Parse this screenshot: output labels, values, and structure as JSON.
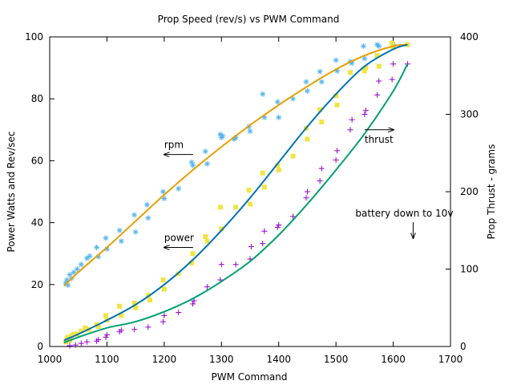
{
  "chart_data": {
    "type": "scatter",
    "title": "Prop Speed (rev/s) vs PWM Command",
    "xlabel": "PWM Command",
    "ylabel": "Power Watts and Rev/sec",
    "y2label": "Prop Thrust - grams",
    "xlim": [
      1000,
      1700
    ],
    "ylim": [
      0,
      100
    ],
    "y2lim": [
      0,
      400
    ],
    "x_ticks": [
      1000,
      1100,
      1200,
      1300,
      1400,
      1500,
      1600,
      1700
    ],
    "y_ticks": [
      0,
      20,
      40,
      60,
      80,
      100
    ],
    "y2_ticks": [
      0,
      100,
      200,
      300,
      400
    ],
    "grid": false,
    "series": [
      {
        "key": "rpm",
        "axis": "y",
        "marker": "star",
        "color": "#56b4e9",
        "x": [
          1028,
          1030,
          1032,
          1035,
          1038,
          1042,
          1048,
          1055,
          1065,
          1070,
          1082,
          1085,
          1098,
          1100,
          1122,
          1125,
          1148,
          1150,
          1170,
          1172,
          1198,
          1200,
          1225,
          1248,
          1250,
          1272,
          1275,
          1298,
          1300,
          1302,
          1322,
          1325,
          1348,
          1350,
          1372,
          1375,
          1398,
          1400,
          1425,
          1448,
          1450,
          1472,
          1475,
          1500,
          1502,
          1525,
          1528,
          1548,
          1550,
          1572,
          1575,
          1598,
          1600
        ],
        "y": [
          20.5,
          21.5,
          19.8,
          23.2,
          22.0,
          24.0,
          25.0,
          26.5,
          28.5,
          29.2,
          32.0,
          29.0,
          35.0,
          31.5,
          37.5,
          34.0,
          42.5,
          37.0,
          45.8,
          41.5,
          50.0,
          47.8,
          51.0,
          59.5,
          58.5,
          63.0,
          59.0,
          68.5,
          67.5,
          68.0,
          67.0,
          67.5,
          71.0,
          69.5,
          81.5,
          74.0,
          79.0,
          74.0,
          80.0,
          85.5,
          82.5,
          88.8,
          85.5,
          92.5,
          89.0,
          92.0,
          91.5,
          97.0,
          93.0,
          97.5,
          97.0,
          98.0,
          97.5
        ],
        "fit_x": [
          1025,
          1050,
          1100,
          1150,
          1200,
          1250,
          1300,
          1350,
          1400,
          1450,
          1500,
          1550,
          1600,
          1625
        ],
        "fit_y": [
          19.5,
          24.0,
          32.0,
          40.5,
          49.0,
          57.0,
          64.5,
          71.5,
          78.0,
          84.0,
          89.5,
          94.0,
          97.0,
          97.5
        ]
      },
      {
        "key": "power",
        "axis": "y",
        "marker": "square",
        "color": "#f0e442",
        "x": [
          1028,
          1030,
          1032,
          1035,
          1038,
          1042,
          1048,
          1055,
          1062,
          1068,
          1082,
          1085,
          1098,
          1100,
          1122,
          1125,
          1148,
          1150,
          1172,
          1175,
          1198,
          1200,
          1225,
          1248,
          1250,
          1272,
          1275,
          1298,
          1300,
          1325,
          1348,
          1350,
          1372,
          1375,
          1398,
          1400,
          1425,
          1448,
          1450,
          1472,
          1475,
          1500,
          1502,
          1525,
          1550,
          1552,
          1572,
          1575,
          1598,
          1600,
          1625
        ],
        "y": [
          1.5,
          2.5,
          3.0,
          2.0,
          3.5,
          4.0,
          4.0,
          5.0,
          6.0,
          5.5,
          7.0,
          6.5,
          10.0,
          8.5,
          13.0,
          10.0,
          14.0,
          12.5,
          16.5,
          15.0,
          21.5,
          18.5,
          23.5,
          27.0,
          30.0,
          35.5,
          34.0,
          45.0,
          38.0,
          45.0,
          50.5,
          46.0,
          56.0,
          51.5,
          58.5,
          57.0,
          61.5,
          70.5,
          67.0,
          76.5,
          72.5,
          81.0,
          78.0,
          88.5,
          89.0,
          90.0,
          94.0,
          90.5,
          98.0,
          96.5,
          97.5
        ],
        "fit_x": [
          1025,
          1050,
          1100,
          1150,
          1200,
          1250,
          1300,
          1350,
          1400,
          1450,
          1500,
          1550,
          1600,
          1625
        ],
        "fit_y": [
          2.0,
          4.0,
          8.5,
          13.5,
          20.0,
          28.0,
          37.5,
          48.0,
          59.5,
          71.0,
          81.5,
          90.5,
          96.0,
          97.5
        ]
      },
      {
        "key": "thrust",
        "axis": "y2",
        "marker": "plus",
        "color": "#9400d3",
        "x": [
          1035,
          1045,
          1055,
          1065,
          1082,
          1085,
          1098,
          1100,
          1122,
          1125,
          1148,
          1172,
          1198,
          1200,
          1225,
          1250,
          1252,
          1275,
          1298,
          1300,
          1325,
          1350,
          1352,
          1372,
          1375,
          1398,
          1400,
          1425,
          1448,
          1450,
          1472,
          1475,
          1500,
          1502,
          1525,
          1528,
          1550,
          1552,
          1572,
          1575,
          1598,
          1600,
          1625
        ],
        "y": [
          1,
          2,
          4,
          6,
          7,
          9,
          12,
          15,
          19,
          21,
          22,
          25,
          32,
          40,
          44,
          55,
          59,
          77,
          86,
          106,
          106,
          113,
          129,
          133,
          149,
          154,
          157,
          168,
          192,
          200,
          214,
          230,
          241,
          253,
          280,
          293,
          300,
          305,
          325,
          343,
          345,
          365,
          365
        ],
        "fit_x": [
          1025,
          1050,
          1100,
          1150,
          1200,
          1250,
          1300,
          1350,
          1400,
          1450,
          1500,
          1550,
          1600,
          1625
        ],
        "fit_y": [
          5,
          12,
          24,
          32,
          45,
          62,
          84,
          110,
          144,
          184,
          228,
          275,
          330,
          365
        ]
      }
    ],
    "fit_colors": {
      "rpm": "#e69f00",
      "power": "#0072b2",
      "thrust": "#009e73"
    },
    "annotations": [
      {
        "text": "rpm",
        "x": 1200,
        "y": 62,
        "axis": "y",
        "arrow": "left"
      },
      {
        "text": "power",
        "x": 1200,
        "y": 32,
        "axis": "y",
        "arrow": "left"
      },
      {
        "text": "thrust",
        "x": 1550,
        "y": 280,
        "axis": "y2",
        "arrow": "right"
      },
      {
        "text": "battery down to 10v",
        "x": 1625,
        "y": 35,
        "axis": "y",
        "arrow": "down"
      }
    ]
  }
}
